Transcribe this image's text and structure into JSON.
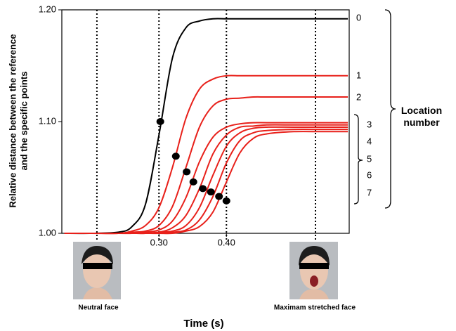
{
  "chart_data": {
    "type": "line",
    "x_label": "Time (s)",
    "y_label": [
      "Relative distance between the reference",
      "and the specific points"
    ],
    "xlim": [
      0.156,
      0.582
    ],
    "ylim": [
      1.0,
      1.2
    ],
    "xticks": [
      {
        "value": 0.3,
        "label": "0.30"
      },
      {
        "value": 0.4,
        "label": "0.40"
      }
    ],
    "yticks": [
      {
        "value": 1.0,
        "label": "1.00"
      },
      {
        "value": 1.1,
        "label": "1.10"
      },
      {
        "value": 1.2,
        "label": "1.20"
      }
    ],
    "x": [
      0.16,
      0.2,
      0.24,
      0.26,
      0.28,
      0.3,
      0.32,
      0.34,
      0.36,
      0.38,
      0.4,
      0.42,
      0.44,
      0.46,
      0.5,
      0.54,
      0.58
    ],
    "series": [
      {
        "name": "0",
        "color": "#000000",
        "values": [
          1.0,
          1.0,
          1.001,
          1.006,
          1.026,
          1.088,
          1.157,
          1.184,
          1.19,
          1.192,
          1.192,
          1.192,
          1.192,
          1.192,
          1.192,
          1.192,
          1.192
        ]
      },
      {
        "name": "1",
        "color": "#e8201a",
        "values": [
          1.0,
          1.0,
          1.0,
          1.002,
          1.007,
          1.023,
          1.059,
          1.103,
          1.129,
          1.138,
          1.141,
          1.141,
          1.141,
          1.141,
          1.141,
          1.141,
          1.141
        ]
      },
      {
        "name": "2",
        "color": "#e8201a",
        "values": [
          1.0,
          1.0,
          1.0,
          1.001,
          1.002,
          1.007,
          1.024,
          1.059,
          1.095,
          1.114,
          1.12,
          1.121,
          1.122,
          1.122,
          1.122,
          1.122,
          1.122
        ]
      },
      {
        "name": "3",
        "color": "#e8201a",
        "values": [
          1.0,
          1.0,
          1.0,
          1.0,
          1.001,
          1.003,
          1.011,
          1.032,
          1.064,
          1.086,
          1.095,
          1.098,
          1.099,
          1.099,
          1.099,
          1.099,
          1.099
        ]
      },
      {
        "name": "4",
        "color": "#e8201a",
        "values": [
          1.0,
          1.0,
          1.0,
          1.0,
          1.0,
          1.001,
          1.005,
          1.016,
          1.04,
          1.071,
          1.088,
          1.095,
          1.096,
          1.097,
          1.097,
          1.097,
          1.097
        ]
      },
      {
        "name": "5",
        "color": "#e8201a",
        "values": [
          1.0,
          1.0,
          1.0,
          1.0,
          1.0,
          1.001,
          1.002,
          1.007,
          1.023,
          1.052,
          1.078,
          1.09,
          1.094,
          1.095,
          1.095,
          1.095,
          1.095
        ]
      },
      {
        "name": "6",
        "color": "#e8201a",
        "values": [
          1.0,
          1.0,
          1.0,
          1.0,
          1.0,
          1.0,
          1.001,
          1.003,
          1.012,
          1.033,
          1.063,
          1.083,
          1.09,
          1.092,
          1.093,
          1.093,
          1.093
        ]
      },
      {
        "name": "7",
        "color": "#e8201a",
        "values": [
          1.0,
          1.0,
          1.0,
          1.0,
          1.0,
          1.0,
          1.0,
          1.002,
          1.006,
          1.019,
          1.046,
          1.072,
          1.085,
          1.089,
          1.091,
          1.091,
          1.091
        ]
      }
    ],
    "markers": {
      "color": "#000000",
      "x": [
        0.302,
        0.325,
        0.341,
        0.351,
        0.365,
        0.377,
        0.389,
        0.4
      ],
      "values": [
        1.1,
        1.069,
        1.055,
        1.046,
        1.04,
        1.037,
        1.033,
        1.029
      ]
    },
    "reference_lines": [
      0.208,
      0.3,
      0.4,
      0.532
    ],
    "group_label": "Location\nnumber",
    "image_labels": [
      "Neutral face",
      "Maximam stretched face"
    ]
  }
}
